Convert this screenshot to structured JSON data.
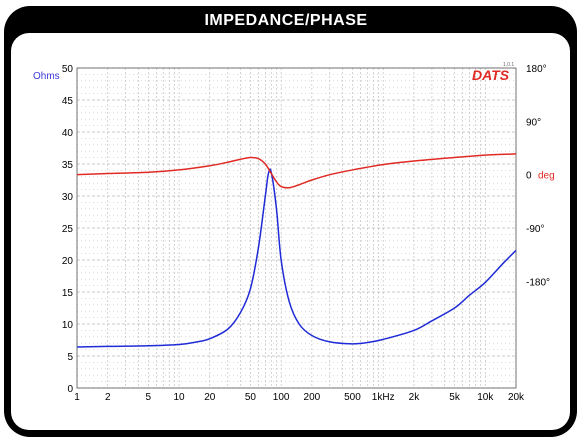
{
  "title": "IMPEDANCE/PHASE",
  "logo": {
    "text": "DATS",
    "version": "1.0.1"
  },
  "colors": {
    "frame": "#000000",
    "impedance": "#1f2bd6",
    "phase": "#e02a24",
    "grid": "#b9b9b9",
    "axis_text": "#000000",
    "left_unit": "#3a3ad8",
    "right_unit": "#e02a24"
  },
  "chart_data": {
    "type": "line",
    "title": "IMPEDANCE/PHASE",
    "x_scale": "log",
    "xlim": [
      1,
      20000
    ],
    "x_ticks": [
      {
        "value": 1,
        "label": "1"
      },
      {
        "value": 2,
        "label": "2"
      },
      {
        "value": 5,
        "label": "5"
      },
      {
        "value": 10,
        "label": "10"
      },
      {
        "value": 20,
        "label": "20"
      },
      {
        "value": 50,
        "label": "50"
      },
      {
        "value": 100,
        "label": "100"
      },
      {
        "value": 200,
        "label": "200"
      },
      {
        "value": 500,
        "label": "500"
      },
      {
        "value": 1000,
        "label": "1kHz"
      },
      {
        "value": 2000,
        "label": "2k"
      },
      {
        "value": 5000,
        "label": "5k"
      },
      {
        "value": 10000,
        "label": "10k"
      },
      {
        "value": 20000,
        "label": "20k"
      }
    ],
    "left_axis": {
      "label": "Ohms",
      "range": [
        0,
        50
      ],
      "ticks": [
        "0",
        "5",
        "10",
        "15",
        "20",
        "25",
        "30",
        "35",
        "40",
        "45",
        "50"
      ]
    },
    "right_axis": {
      "label": "deg",
      "range": [
        -360,
        180
      ],
      "ticks": [
        {
          "value": 180,
          "label": "180°"
        },
        {
          "value": 90,
          "label": "90°"
        },
        {
          "value": 0,
          "label": "0"
        },
        {
          "value": -90,
          "label": "-90°"
        },
        {
          "value": -180,
          "label": "-180°"
        }
      ]
    },
    "grid": true,
    "series": [
      {
        "name": "impedance",
        "axis": "left",
        "points": [
          [
            1,
            6.4
          ],
          [
            2,
            6.5
          ],
          [
            5,
            6.6
          ],
          [
            10,
            6.8
          ],
          [
            15,
            7.2
          ],
          [
            20,
            7.7
          ],
          [
            30,
            9.2
          ],
          [
            40,
            11.8
          ],
          [
            50,
            15.5
          ],
          [
            60,
            22
          ],
          [
            70,
            30
          ],
          [
            75,
            33.5
          ],
          [
            80,
            33.7
          ],
          [
            90,
            28
          ],
          [
            100,
            20
          ],
          [
            120,
            13.5
          ],
          [
            150,
            10
          ],
          [
            200,
            8.2
          ],
          [
            300,
            7.2
          ],
          [
            500,
            6.9
          ],
          [
            700,
            7.1
          ],
          [
            1000,
            7.6
          ],
          [
            2000,
            9
          ],
          [
            3000,
            10.5
          ],
          [
            5000,
            12.5
          ],
          [
            7000,
            14.5
          ],
          [
            10000,
            16.5
          ],
          [
            15000,
            19.5
          ],
          [
            20000,
            21.5
          ]
        ]
      },
      {
        "name": "phase",
        "axis": "right",
        "points": [
          [
            1,
            0
          ],
          [
            2,
            2
          ],
          [
            5,
            4
          ],
          [
            10,
            8
          ],
          [
            20,
            15
          ],
          [
            30,
            21
          ],
          [
            40,
            26
          ],
          [
            50,
            29
          ],
          [
            60,
            27
          ],
          [
            70,
            18
          ],
          [
            80,
            2
          ],
          [
            90,
            -12
          ],
          [
            100,
            -20
          ],
          [
            120,
            -22
          ],
          [
            150,
            -17
          ],
          [
            200,
            -9
          ],
          [
            300,
            0
          ],
          [
            500,
            8
          ],
          [
            1000,
            17
          ],
          [
            2000,
            23
          ],
          [
            5000,
            29
          ],
          [
            10000,
            33
          ],
          [
            20000,
            35
          ]
        ]
      }
    ]
  }
}
